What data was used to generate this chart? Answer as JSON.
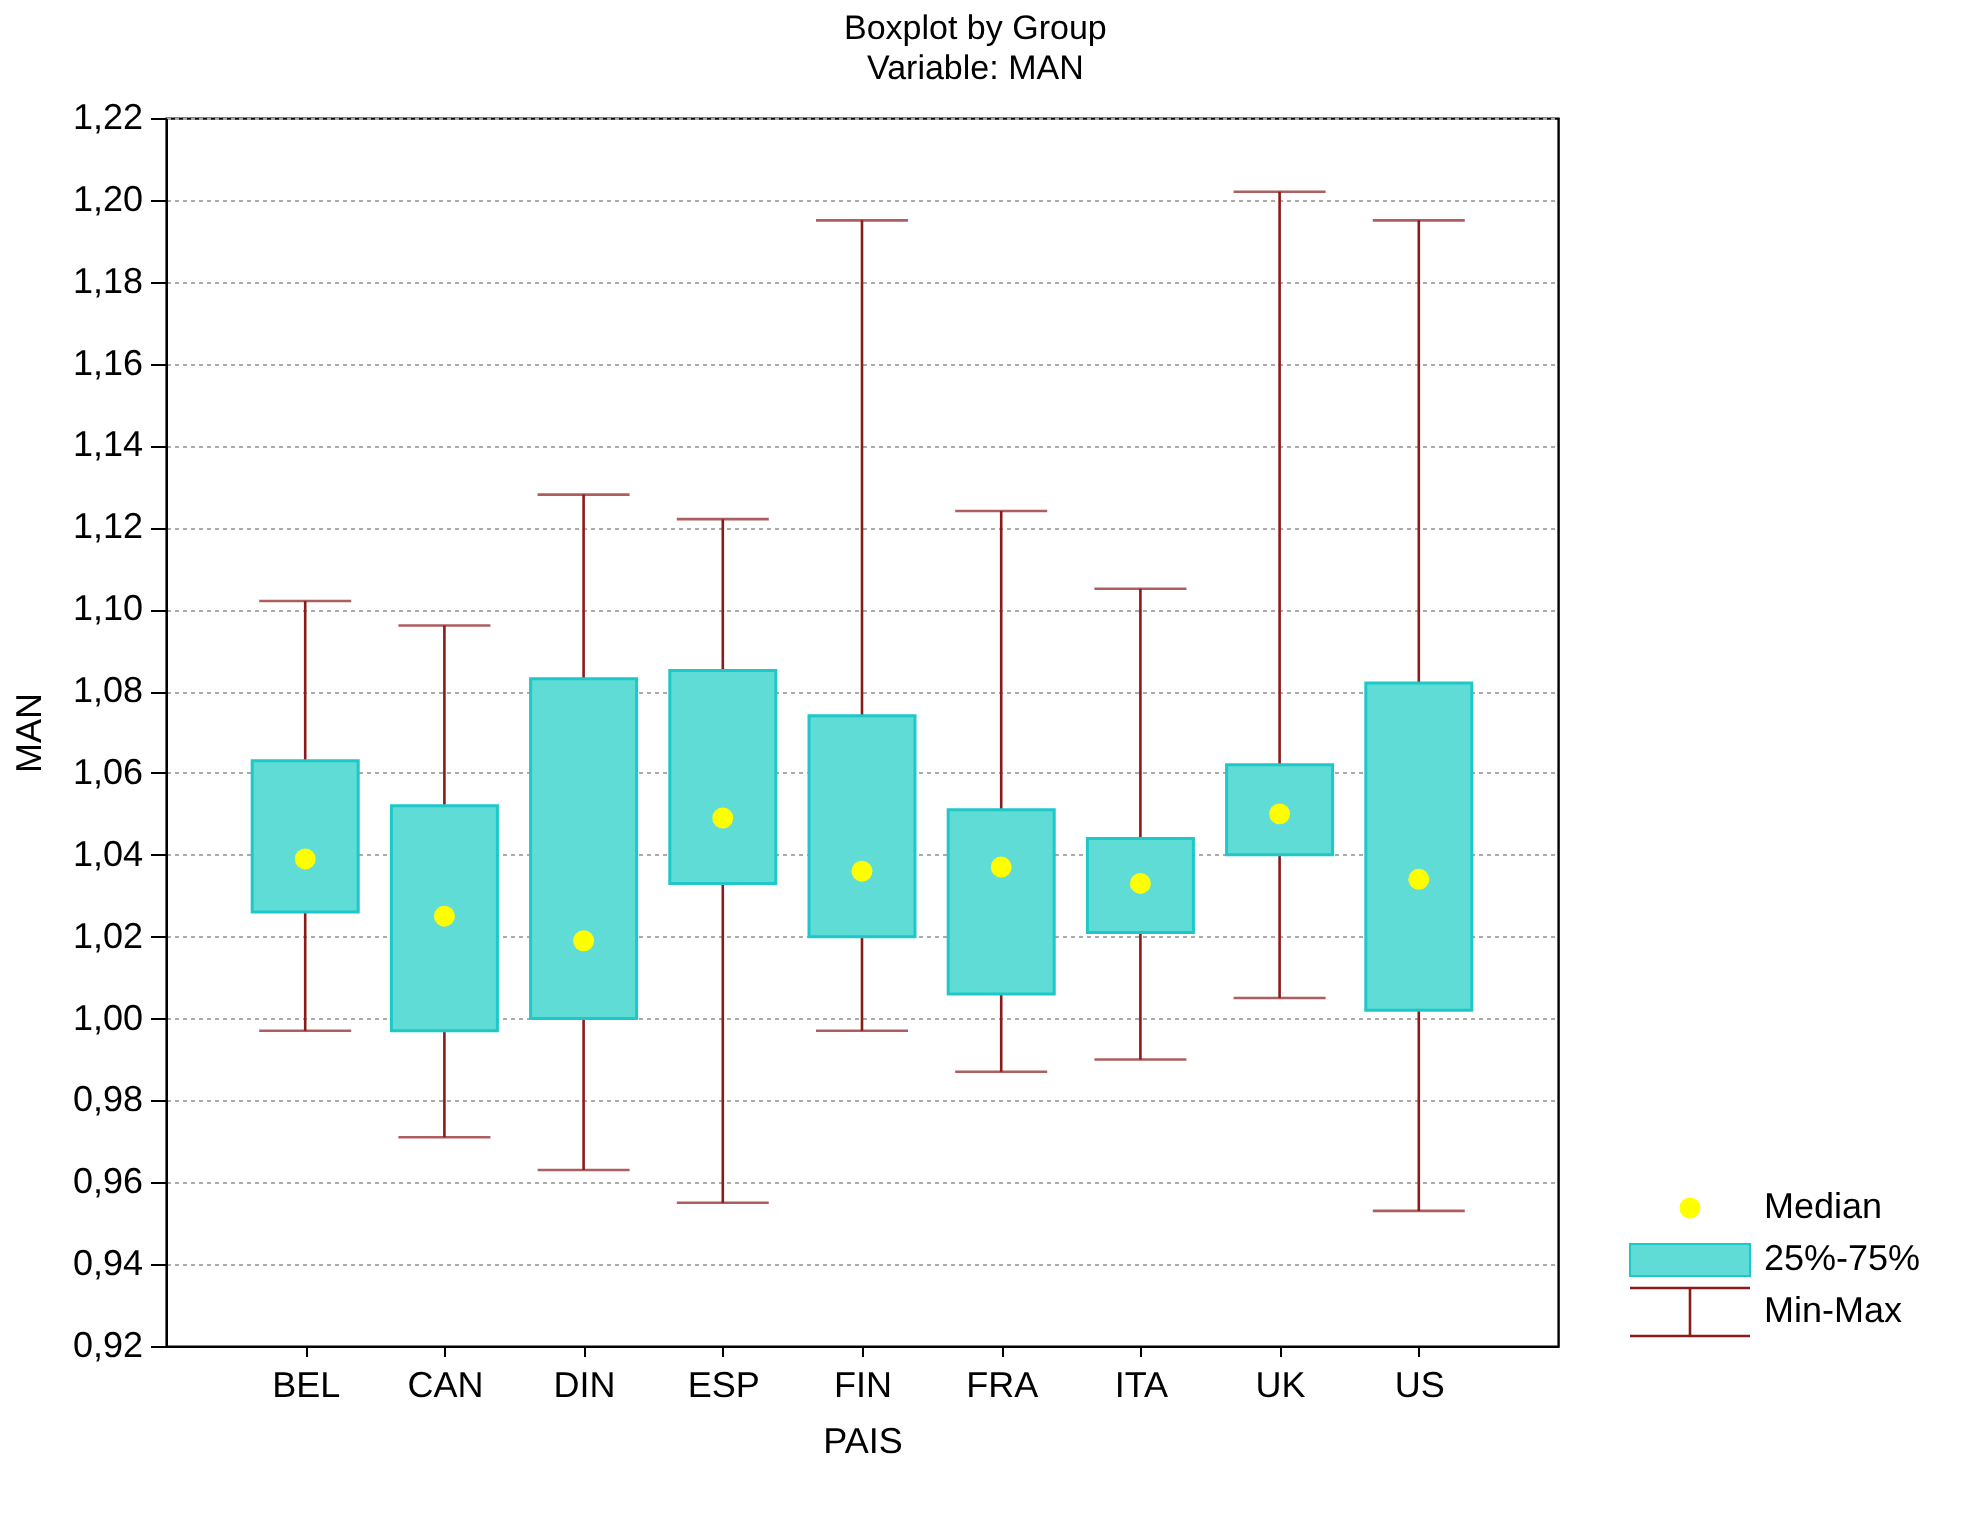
{
  "chart_data": {
    "type": "box",
    "title": "Boxplot by Group",
    "subtitle": "Variable: MAN",
    "xlabel": "PAIS",
    "ylabel": "MAN",
    "categories": [
      "BEL",
      "CAN",
      "DIN",
      "ESP",
      "FIN",
      "FRA",
      "ITA",
      "UK",
      "US"
    ],
    "series": [
      {
        "name": "Median",
        "type": "scatter",
        "color": "#ffff00",
        "x": [
          "BEL",
          "CAN",
          "DIN",
          "ESP",
          "FIN",
          "FRA",
          "ITA",
          "UK",
          "US"
        ],
        "values": [
          1.039,
          1.025,
          1.019,
          1.049,
          1.036,
          1.037,
          1.033,
          1.05,
          1.034
        ]
      },
      {
        "name": "25%-75%",
        "color": "#5fdcd6",
        "boxes": [
          {
            "low": 0.997,
            "q1": 1.026,
            "q3": 1.063,
            "high": 1.102
          },
          {
            "low": 0.971,
            "q1": 0.997,
            "q3": 1.052,
            "high": 1.096
          },
          {
            "low": 0.963,
            "q1": 1.0,
            "q3": 1.083,
            "high": 1.128
          },
          {
            "low": 0.955,
            "q1": 1.033,
            "q3": 1.085,
            "high": 1.122
          },
          {
            "low": 0.997,
            "q1": 1.02,
            "q3": 1.074,
            "high": 1.195
          },
          {
            "low": 0.987,
            "q1": 1.006,
            "q3": 1.051,
            "high": 1.124
          },
          {
            "low": 0.99,
            "q1": 1.021,
            "q3": 1.044,
            "high": 1.105
          },
          {
            "low": 1.005,
            "q1": 1.04,
            "q3": 1.062,
            "high": 1.202
          },
          {
            "low": 0.953,
            "q1": 1.002,
            "q3": 1.082,
            "high": 1.195
          }
        ]
      }
    ],
    "annotations": [
      "Min-Max"
    ],
    "ylim": [
      0.92,
      1.22
    ],
    "yticks": [
      {
        "value": 0.92,
        "label": "0,92"
      },
      {
        "value": 0.94,
        "label": "0,94"
      },
      {
        "value": 0.96,
        "label": "0,96"
      },
      {
        "value": 0.98,
        "label": "0,98"
      },
      {
        "value": 1.0,
        "label": "1,00"
      },
      {
        "value": 1.02,
        "label": "1,02"
      },
      {
        "value": 1.04,
        "label": "1,04"
      },
      {
        "value": 1.06,
        "label": "1,06"
      },
      {
        "value": 1.08,
        "label": "1,08"
      },
      {
        "value": 1.1,
        "label": "1,10"
      },
      {
        "value": 1.12,
        "label": "1,12"
      },
      {
        "value": 1.14,
        "label": "1,14"
      },
      {
        "value": 1.16,
        "label": "1,16"
      },
      {
        "value": 1.18,
        "label": "1,18"
      },
      {
        "value": 1.2,
        "label": "1,20"
      },
      {
        "value": 1.22,
        "label": "1,22"
      }
    ],
    "grid": "y",
    "legend": "bottom right"
  }
}
